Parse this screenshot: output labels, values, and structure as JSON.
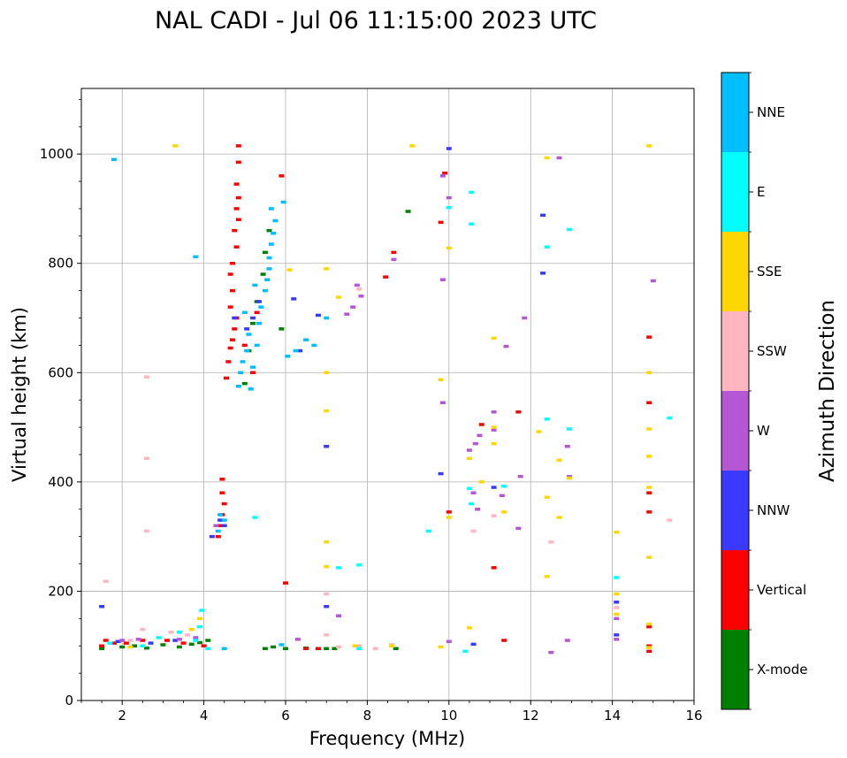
{
  "chart_data": {
    "type": "scatter",
    "title": "NAL CADI - Jul 06 11:15:00 2023 UTC",
    "xlabel": "Frequency (MHz)",
    "ylabel": "Virtual height (km)",
    "xlim": [
      1,
      16
    ],
    "ylim": [
      0,
      1120
    ],
    "xticks": [
      2,
      4,
      6,
      8,
      10,
      12,
      14,
      16
    ],
    "yticks": [
      0,
      200,
      400,
      600,
      800,
      1000
    ],
    "grid": true,
    "colorbar": {
      "title": "Azimuth Direction",
      "categories": [
        {
          "name": "X-mode",
          "color": "#008000"
        },
        {
          "name": "Vertical",
          "color": "#ff0000"
        },
        {
          "name": "NNW",
          "color": "#3a3aff"
        },
        {
          "name": "W",
          "color": "#b556d5"
        },
        {
          "name": "SSW",
          "color": "#ffb6c1"
        },
        {
          "name": "SSE",
          "color": "#ffd700"
        },
        {
          "name": "E",
          "color": "#00ffff"
        },
        {
          "name": "NNE",
          "color": "#00bfff"
        }
      ]
    },
    "series": [
      {
        "name": "X-mode",
        "points": [
          [
            1.5,
            95
          ],
          [
            2.0,
            98
          ],
          [
            2.3,
            100
          ],
          [
            2.6,
            96
          ],
          [
            3.0,
            102
          ],
          [
            3.4,
            98
          ],
          [
            3.7,
            103
          ],
          [
            3.9,
            106
          ],
          [
            4.1,
            110
          ],
          [
            5.5,
            95
          ],
          [
            5.7,
            98
          ],
          [
            6.0,
            95
          ],
          [
            6.5,
            96
          ],
          [
            6.8,
            95
          ],
          [
            7.0,
            95
          ],
          [
            7.2,
            95
          ],
          [
            8.7,
            95
          ],
          [
            9.0,
            895
          ],
          [
            5.0,
            580
          ],
          [
            5.1,
            640
          ],
          [
            5.2,
            690
          ],
          [
            5.3,
            730
          ],
          [
            5.45,
            780
          ],
          [
            5.5,
            820
          ],
          [
            5.6,
            860
          ],
          [
            5.9,
            680
          ]
        ]
      },
      {
        "name": "Vertical",
        "points": [
          [
            1.5,
            100
          ],
          [
            1.6,
            110
          ],
          [
            1.8,
            105
          ],
          [
            2.1,
            105
          ],
          [
            2.5,
            110
          ],
          [
            3.1,
            110
          ],
          [
            3.5,
            105
          ],
          [
            4.0,
            100
          ],
          [
            4.35,
            300
          ],
          [
            4.4,
            320
          ],
          [
            4.45,
            340
          ],
          [
            4.5,
            360
          ],
          [
            4.45,
            380
          ],
          [
            4.45,
            405
          ],
          [
            4.55,
            590
          ],
          [
            4.6,
            620
          ],
          [
            4.65,
            645
          ],
          [
            4.7,
            660
          ],
          [
            4.75,
            680
          ],
          [
            4.8,
            700
          ],
          [
            4.65,
            720
          ],
          [
            4.7,
            750
          ],
          [
            4.65,
            780
          ],
          [
            4.7,
            800
          ],
          [
            4.8,
            830
          ],
          [
            4.75,
            860
          ],
          [
            4.85,
            880
          ],
          [
            4.8,
            900
          ],
          [
            4.85,
            920
          ],
          [
            4.8,
            945
          ],
          [
            4.85,
            985
          ],
          [
            4.85,
            1015
          ],
          [
            5.0,
            650
          ],
          [
            5.2,
            600
          ],
          [
            5.3,
            710
          ],
          [
            5.9,
            960
          ],
          [
            6.0,
            215
          ],
          [
            6.5,
            95
          ],
          [
            6.8,
            95
          ],
          [
            8.45,
            775
          ],
          [
            8.65,
            820
          ],
          [
            9.8,
            875
          ],
          [
            9.9,
            965
          ],
          [
            10.0,
            345
          ],
          [
            10.8,
            505
          ],
          [
            11.1,
            243
          ],
          [
            11.35,
            110
          ],
          [
            11.7,
            528
          ],
          [
            14.9,
            100
          ],
          [
            14.9,
            90
          ],
          [
            14.9,
            135
          ],
          [
            14.9,
            345
          ],
          [
            14.9,
            380
          ],
          [
            14.9,
            545
          ],
          [
            14.9,
            665
          ]
        ]
      },
      {
        "name": "NNW",
        "points": [
          [
            1.5,
            172
          ],
          [
            1.9,
            108
          ],
          [
            2.7,
            105
          ],
          [
            3.3,
            110
          ],
          [
            4.2,
            300
          ],
          [
            4.4,
            330
          ],
          [
            4.5,
            320
          ],
          [
            4.75,
            700
          ],
          [
            5.05,
            680
          ],
          [
            5.2,
            700
          ],
          [
            5.35,
            730
          ],
          [
            6.2,
            735
          ],
          [
            6.35,
            640
          ],
          [
            6.8,
            705
          ],
          [
            7.0,
            465
          ],
          [
            7.0,
            172
          ],
          [
            9.8,
            415
          ],
          [
            10.0,
            1010
          ],
          [
            10.6,
            103
          ],
          [
            11.1,
            390
          ],
          [
            12.3,
            888
          ],
          [
            12.3,
            782
          ],
          [
            14.1,
            180
          ],
          [
            14.1,
            120
          ]
        ]
      },
      {
        "name": "W",
        "points": [
          [
            2.0,
            110
          ],
          [
            2.4,
            112
          ],
          [
            3.4,
            112
          ],
          [
            3.8,
            115
          ],
          [
            4.3,
            320
          ],
          [
            6.3,
            112
          ],
          [
            7.3,
            155
          ],
          [
            7.5,
            707
          ],
          [
            7.65,
            720
          ],
          [
            7.85,
            740
          ],
          [
            7.75,
            760
          ],
          [
            8.65,
            807
          ],
          [
            9.85,
            545
          ],
          [
            9.85,
            770
          ],
          [
            9.85,
            960
          ],
          [
            10.0,
            920
          ],
          [
            10.0,
            108
          ],
          [
            10.5,
            458
          ],
          [
            10.65,
            470
          ],
          [
            10.75,
            485
          ],
          [
            10.6,
            380
          ],
          [
            10.7,
            350
          ],
          [
            11.1,
            528
          ],
          [
            11.1,
            495
          ],
          [
            11.3,
            375
          ],
          [
            11.4,
            648
          ],
          [
            11.7,
            315
          ],
          [
            11.75,
            410
          ],
          [
            11.85,
            700
          ],
          [
            12.7,
            993
          ],
          [
            12.5,
            88
          ],
          [
            12.9,
            465
          ],
          [
            12.95,
            410
          ],
          [
            12.9,
            110
          ],
          [
            14.1,
            150
          ],
          [
            14.1,
            112
          ],
          [
            15.0,
            768
          ]
        ]
      },
      {
        "name": "SSW",
        "points": [
          [
            1.6,
            218
          ],
          [
            2.2,
            110
          ],
          [
            2.5,
            130
          ],
          [
            2.6,
            310
          ],
          [
            2.6,
            443
          ],
          [
            2.6,
            592
          ],
          [
            3.2,
            125
          ],
          [
            3.6,
            120
          ],
          [
            7.0,
            195
          ],
          [
            7.0,
            120
          ],
          [
            7.3,
            98
          ],
          [
            7.8,
            753
          ],
          [
            7.8,
            100
          ],
          [
            8.2,
            95
          ],
          [
            8.6,
            102
          ],
          [
            10.6,
            310
          ],
          [
            11.1,
            338
          ],
          [
            12.5,
            290
          ],
          [
            14.1,
            170
          ],
          [
            15.4,
            330
          ]
        ]
      },
      {
        "name": "SSE",
        "points": [
          [
            2.2,
            98
          ],
          [
            3.3,
            1015
          ],
          [
            3.9,
            150
          ],
          [
            3.7,
            130
          ],
          [
            6.1,
            788
          ],
          [
            7.0,
            790
          ],
          [
            7.0,
            600
          ],
          [
            7.0,
            530
          ],
          [
            7.0,
            290
          ],
          [
            7.0,
            245
          ],
          [
            7.3,
            738
          ],
          [
            7.7,
            100
          ],
          [
            8.6,
            100
          ],
          [
            9.1,
            1015
          ],
          [
            9.8,
            587
          ],
          [
            9.8,
            98
          ],
          [
            10.0,
            828
          ],
          [
            10.0,
            335
          ],
          [
            10.5,
            443
          ],
          [
            10.5,
            133
          ],
          [
            10.8,
            400
          ],
          [
            11.1,
            470
          ],
          [
            11.1,
            500
          ],
          [
            11.1,
            663
          ],
          [
            11.35,
            345
          ],
          [
            12.2,
            492
          ],
          [
            12.4,
            993
          ],
          [
            12.4,
            372
          ],
          [
            12.4,
            227
          ],
          [
            12.7,
            440
          ],
          [
            12.7,
            335
          ],
          [
            12.95,
            407
          ],
          [
            14.1,
            308
          ],
          [
            14.1,
            195
          ],
          [
            14.1,
            158
          ],
          [
            14.9,
            1015
          ],
          [
            14.9,
            600
          ],
          [
            14.9,
            497
          ],
          [
            14.9,
            447
          ],
          [
            14.9,
            390
          ],
          [
            14.9,
            262
          ],
          [
            14.9,
            140
          ],
          [
            14.9,
            97
          ]
        ]
      },
      {
        "name": "E",
        "points": [
          [
            1.7,
            105
          ],
          [
            2.5,
            100
          ],
          [
            2.9,
            115
          ],
          [
            3.4,
            125
          ],
          [
            3.8,
            110
          ],
          [
            3.9,
            135
          ],
          [
            3.95,
            165
          ],
          [
            4.1,
            95
          ],
          [
            5.25,
            335
          ],
          [
            7.3,
            243
          ],
          [
            7.8,
            248
          ],
          [
            7.8,
            95
          ],
          [
            9.5,
            310
          ],
          [
            10.0,
            902
          ],
          [
            10.4,
            90
          ],
          [
            10.5,
            388
          ],
          [
            10.55,
            360
          ],
          [
            10.55,
            930
          ],
          [
            10.55,
            872
          ],
          [
            11.35,
            392
          ],
          [
            12.4,
            830
          ],
          [
            12.4,
            515
          ],
          [
            12.95,
            862
          ],
          [
            12.95,
            497
          ],
          [
            14.1,
            225
          ],
          [
            15.4,
            517
          ]
        ]
      },
      {
        "name": "NNE",
        "points": [
          [
            1.8,
            990
          ],
          [
            3.8,
            812
          ],
          [
            4.35,
            310
          ],
          [
            4.5,
            330
          ],
          [
            4.4,
            340
          ],
          [
            4.85,
            575
          ],
          [
            4.9,
            600
          ],
          [
            4.95,
            620
          ],
          [
            5.05,
            640
          ],
          [
            5.1,
            670
          ],
          [
            5.15,
            570
          ],
          [
            5.2,
            610
          ],
          [
            5.3,
            650
          ],
          [
            5.35,
            690
          ],
          [
            5.4,
            720
          ],
          [
            5.5,
            750
          ],
          [
            5.55,
            770
          ],
          [
            5.6,
            790
          ],
          [
            5.6,
            810
          ],
          [
            5.65,
            835
          ],
          [
            5.7,
            855
          ],
          [
            5.75,
            878
          ],
          [
            5.65,
            900
          ],
          [
            5.0,
            710
          ],
          [
            5.25,
            760
          ],
          [
            5.95,
            912
          ],
          [
            6.05,
            630
          ],
          [
            6.25,
            640
          ],
          [
            6.5,
            660
          ],
          [
            6.7,
            650
          ],
          [
            7.0,
            700
          ],
          [
            4.5,
            95
          ],
          [
            5.9,
            102
          ]
        ]
      }
    ]
  }
}
